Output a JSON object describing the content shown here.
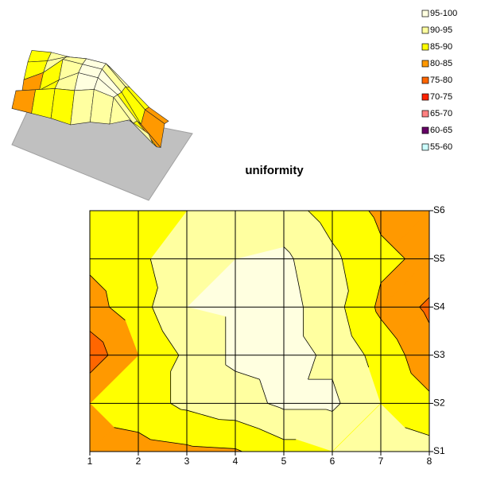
{
  "chart_data": {
    "type": "contour",
    "title": "uniformity",
    "x": [
      1,
      2,
      3,
      4,
      5,
      6,
      7,
      8
    ],
    "y": [
      "S1",
      "S2",
      "S3",
      "S4",
      "S5",
      "S6"
    ],
    "z": [
      [
        82,
        83,
        84,
        84.5,
        88,
        90,
        94,
        92
      ],
      [
        85,
        88,
        91,
        93,
        96,
        96,
        90,
        86
      ],
      [
        77,
        85,
        91,
        96,
        97,
        94,
        88,
        82
      ],
      [
        83,
        88,
        95,
        96,
        97,
        92,
        84,
        79
      ],
      [
        86,
        89,
        93,
        95,
        96,
        91,
        86,
        84
      ],
      [
        87,
        89,
        90,
        91,
        92,
        88,
        84,
        82
      ]
    ],
    "xlim": [
      1,
      8
    ],
    "xticks": [
      1,
      2,
      3,
      4,
      5,
      6,
      7,
      8
    ],
    "grid": true,
    "legend": "top-right",
    "bands": [
      {
        "label": "95-100",
        "min": 95,
        "max": 100,
        "color": "#ffffe0"
      },
      {
        "label": "90-95",
        "min": 90,
        "max": 95,
        "color": "#ffffa0"
      },
      {
        "label": "85-90",
        "min": 85,
        "max": 90,
        "color": "#ffff00"
      },
      {
        "label": "80-85",
        "min": 80,
        "max": 85,
        "color": "#ff9900"
      },
      {
        "label": "75-80",
        "min": 75,
        "max": 80,
        "color": "#ff6600"
      },
      {
        "label": "70-75",
        "min": 70,
        "max": 75,
        "color": "#ff2200"
      },
      {
        "label": "65-70",
        "min": 65,
        "max": 70,
        "color": "#ff8080"
      },
      {
        "label": "60-65",
        "min": 60,
        "max": 65,
        "color": "#660066"
      },
      {
        "label": "55-60",
        "min": 55,
        "max": 60,
        "color": "#ccffff"
      }
    ]
  }
}
